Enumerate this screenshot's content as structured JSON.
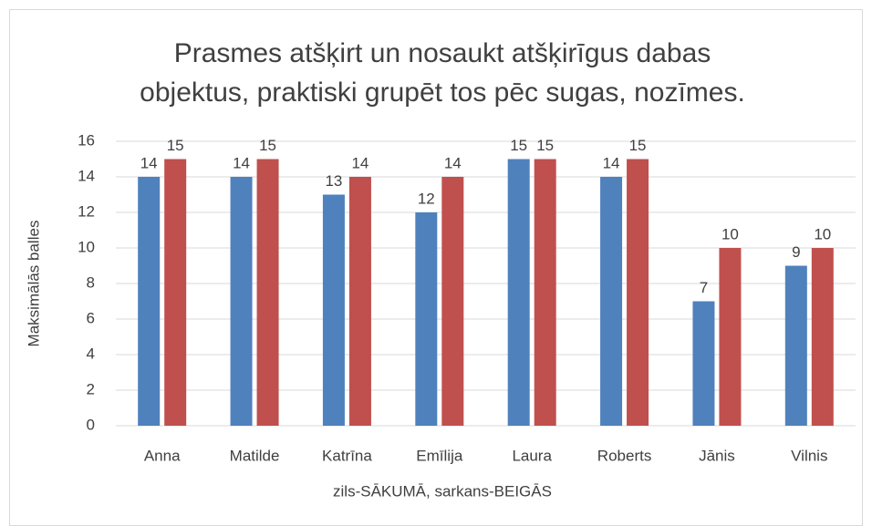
{
  "chart_data": {
    "type": "bar",
    "title": [
      "Prasmes atšķirt un nosaukt atšķirīgus dabas",
      "objektus, praktiski grupēt tos pēc sugas, nozīmes."
    ],
    "xlabel": "zils-SĀKUMĀ, sarkans-BEIGĀS",
    "ylabel": "Maksimālās balles",
    "categories": [
      "Anna",
      "Matilde",
      "Katrīna",
      "Emīlija",
      "Laura",
      "Roberts",
      "Jānis",
      "Vilnis"
    ],
    "series": [
      {
        "color": "#4f81bd",
        "values": [
          14,
          14,
          13,
          12,
          15,
          14,
          7,
          9
        ]
      },
      {
        "color": "#c0504d",
        "values": [
          15,
          15,
          14,
          14,
          15,
          15,
          10,
          10
        ]
      }
    ],
    "ylim": [
      0,
      16
    ],
    "yticks": [
      0,
      2,
      4,
      6,
      8,
      10,
      12,
      14,
      16
    ],
    "grid": true
  }
}
